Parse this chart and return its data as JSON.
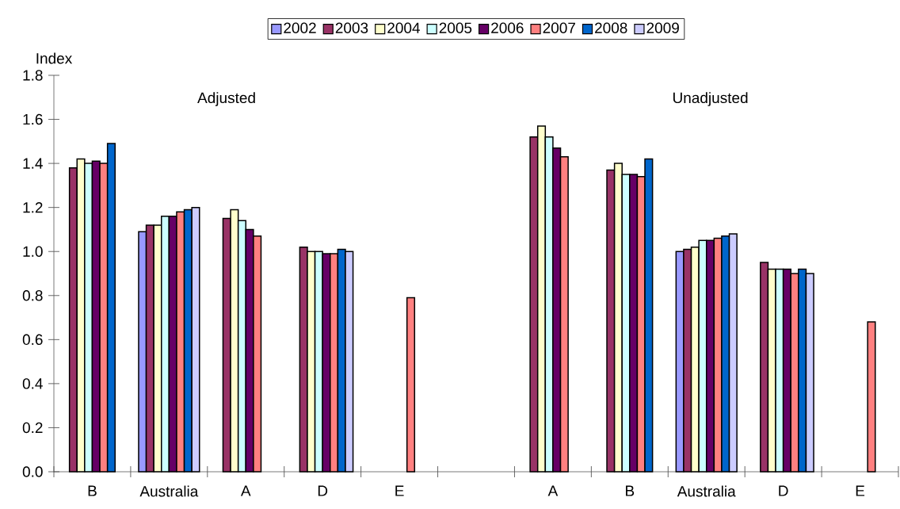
{
  "chart_data": {
    "type": "bar",
    "categories": [
      "B",
      "Australia",
      "A",
      "D",
      "E",
      null,
      "A",
      "B",
      "Australia",
      "D",
      "E"
    ],
    "ylabel": "Index",
    "annotations": [
      "Adjusted",
      "Unadjusted"
    ],
    "ylim": [
      0,
      1.8
    ],
    "yticks": [
      {
        "value": 0,
        "label": "0.0"
      },
      0.2,
      0.4,
      0.6,
      0.8,
      {
        "value": 1,
        "label": "1.0"
      },
      1.2,
      1.4,
      1.6,
      1.8
    ],
    "legend": "top",
    "grid": false,
    "series": [
      {
        "name": "2002",
        "color": "#9999ff",
        "values": [
          null,
          1.09,
          null,
          null,
          null,
          null,
          null,
          null,
          1.0,
          null,
          null
        ]
      },
      {
        "name": "2003",
        "color": "#993366",
        "values": [
          1.38,
          1.12,
          1.15,
          1.02,
          null,
          null,
          1.52,
          1.37,
          1.01,
          0.95,
          null
        ]
      },
      {
        "name": "2004",
        "color": "#ffffcc",
        "values": [
          1.42,
          1.12,
          1.19,
          1.0,
          null,
          null,
          1.57,
          1.4,
          1.02,
          0.92,
          null
        ]
      },
      {
        "name": "2005",
        "color": "#ccffff",
        "values": [
          1.4,
          1.16,
          1.14,
          1.0,
          null,
          null,
          1.52,
          1.35,
          1.05,
          0.92,
          null
        ]
      },
      {
        "name": "2006",
        "color": "#660066",
        "values": [
          1.41,
          1.16,
          1.1,
          0.99,
          null,
          null,
          1.47,
          1.35,
          1.05,
          0.92,
          null
        ]
      },
      {
        "name": "2007",
        "color": "#ff8080",
        "values": [
          1.4,
          1.18,
          1.07,
          0.99,
          0.79,
          null,
          1.43,
          1.34,
          1.06,
          0.9,
          0.68
        ]
      },
      {
        "name": "2008",
        "color": "#0066cc",
        "values": [
          1.49,
          1.19,
          null,
          1.01,
          null,
          null,
          null,
          1.42,
          1.07,
          0.92,
          null
        ]
      },
      {
        "name": "2009",
        "color": "#ccccff",
        "values": [
          null,
          1.2,
          null,
          1.0,
          null,
          null,
          null,
          null,
          1.08,
          0.9,
          null
        ]
      }
    ]
  }
}
